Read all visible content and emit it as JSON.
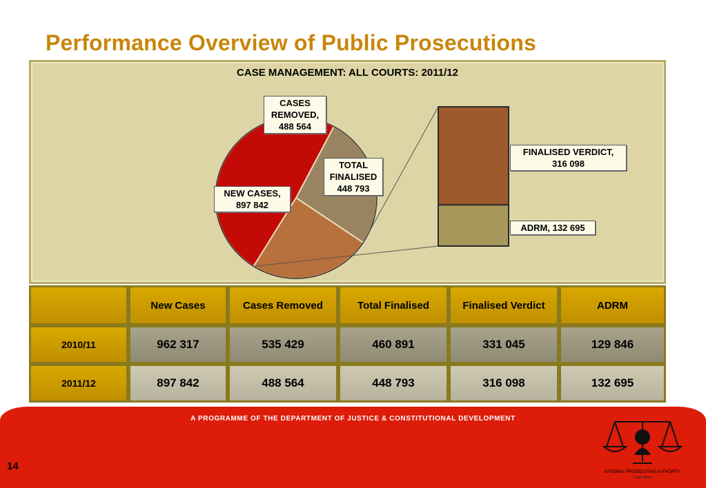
{
  "slide": {
    "title": "Performance Overview of Public Prosecutions",
    "page_number": "14"
  },
  "chart_data": {
    "type": "pie",
    "title": "CASE MANAGEMENT: ALL COURTS: 2011/12",
    "slices": [
      {
        "label": "NEW CASES",
        "value": 897842,
        "display": "NEW CASES,\n897 842",
        "color": "#c40a06"
      },
      {
        "label": "CASES REMOVED",
        "value": 488564,
        "display": "CASES\nREMOVED,\n488 564",
        "color": "#9a8360"
      },
      {
        "label": "TOTAL FINALISED",
        "value": 448793,
        "display": "TOTAL\nFINALISED\n448 793",
        "color": "#b8703c"
      }
    ],
    "breakdown": {
      "of": "TOTAL FINALISED",
      "type": "stacked-bar",
      "segments": [
        {
          "label": "FINALISED VERDICT",
          "value": 316098,
          "display": "FINALISED VERDICT,\n316 098",
          "color": "#9e5a2c"
        },
        {
          "label": "ADRM",
          "value": 132695,
          "display": "ADRM, 132 695",
          "color": "#a8985c"
        }
      ]
    }
  },
  "table": {
    "headers": [
      "",
      "New Cases",
      "Cases Removed",
      "Total Finalised",
      "Finalised Verdict",
      "ADRM"
    ],
    "rows": [
      {
        "year": "2010/11",
        "values": [
          "962 317",
          "535 429",
          "460 891",
          "331 045",
          "129 846"
        ]
      },
      {
        "year": "2011/12",
        "values": [
          "897 842",
          "488 564",
          "448 793",
          "316 098",
          "132 695"
        ]
      }
    ]
  },
  "footer": {
    "programme_text": "A PROGRAMME OF THE DEPARTMENT OF JUSTICE & CONSTITUTIONAL DEVELOPMENT",
    "logo_caption": "NATIONAL PROSECUTING AUTHORITY",
    "logo_sub": "South Africa",
    "logo_icon": "scales-of-justice-icon"
  }
}
